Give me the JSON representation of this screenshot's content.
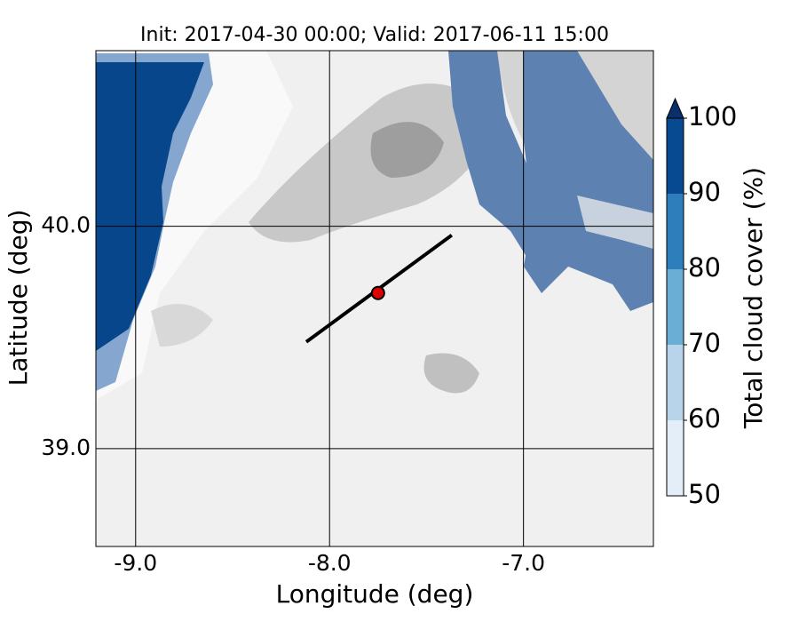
{
  "title": "Init: 2017-04-30 00:00; Valid: 2017-06-11 15:00",
  "x_axis": {
    "label": "Longitude (deg)",
    "lim": [
      -9.205,
      -6.33
    ],
    "ticks": [
      {
        "value": -9,
        "label": "-9.0"
      },
      {
        "value": -8,
        "label": "-8.0"
      },
      {
        "value": -7,
        "label": "-7.0"
      }
    ]
  },
  "y_axis": {
    "label": "Latitude (deg)",
    "lim": [
      38.56,
      40.79
    ],
    "ticks": [
      {
        "value": 39,
        "label": "39.0"
      },
      {
        "value": 40,
        "label": "40.0"
      }
    ]
  },
  "colorbar": {
    "label": "Total cloud cover (%)",
    "ticks": [
      50,
      60,
      70,
      80,
      90,
      100
    ],
    "colors": [
      "#e3eef8",
      "#b7d4ea",
      "#6aaed6",
      "#2e7ebc",
      "#084a91"
    ],
    "extend_color": "#08306b"
  },
  "transect": {
    "x": [
      -8.12,
      -7.37
    ],
    "y": [
      39.48,
      39.96
    ],
    "color": "#000000"
  },
  "point": {
    "x": -7.75,
    "y": 39.7,
    "color": "#e00000"
  }
}
